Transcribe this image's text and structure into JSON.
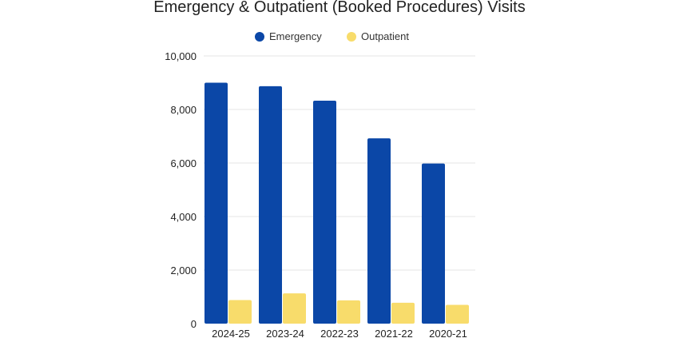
{
  "chart_data": {
    "type": "bar",
    "title": "Emergency & Outpatient (Booked Procedures) Visits",
    "xlabel": "",
    "ylabel": "",
    "categories": [
      "2024-25",
      "2023-24",
      "2022-23",
      "2021-22",
      "2020-21"
    ],
    "series": [
      {
        "name": "Emergency",
        "color": "#0b47a7",
        "values": [
          9000,
          8870,
          8330,
          6920,
          5980
        ]
      },
      {
        "name": "Outpatient",
        "color": "#f8dc6b",
        "values": [
          880,
          1130,
          870,
          780,
          700
        ]
      }
    ],
    "ylim": [
      0,
      10000
    ],
    "yticks": [
      0,
      2000,
      4000,
      6000,
      8000,
      10000
    ],
    "ytick_labels": [
      "0",
      "2,000",
      "4,000",
      "6,000",
      "8,000",
      "10,000"
    ],
    "grid": true,
    "legend_position": "top-center"
  }
}
